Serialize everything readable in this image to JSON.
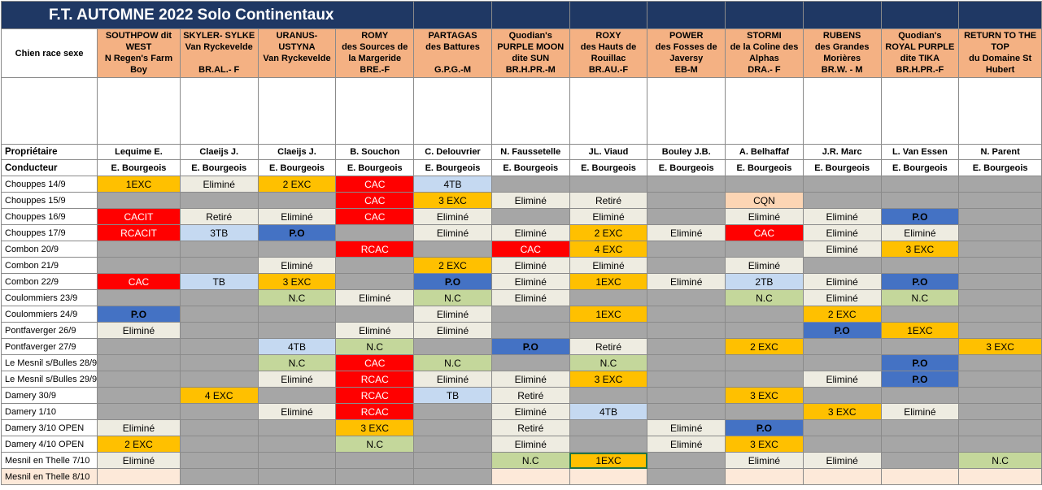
{
  "title": "F.T. AUTOMNE 2022 Solo Continentaux",
  "labels": {
    "chien": "Chien race sexe",
    "proprietaire": "Propriétaire",
    "conducteur": "Conducteur"
  },
  "dogs": [
    {
      "name_lines": [
        "SOUTHPOW dit",
        "WEST",
        "N Regen's Farm",
        "Boy"
      ],
      "owner": "Lequime E.",
      "handler": "E. Bourgeois",
      "photo_colors": {
        "dog": "#8c8b80",
        "bg": "grass"
      }
    },
    {
      "name_lines": [
        "SKYLER- SYLKE",
        "Van Ryckevelde",
        "",
        "BR.AL.- F"
      ],
      "owner": "Claeijs J.",
      "handler": "E. Bourgeois",
      "photo_colors": {
        "dog": "#3a3530",
        "bg": "grass"
      }
    },
    {
      "name_lines": [
        "URANUS-",
        "USTYNA",
        "Van Ryckevelde",
        ""
      ],
      "owner": "Claeijs J.",
      "handler": "E. Bourgeois",
      "photo_colors": {
        "dog": "#4a3a32",
        "bg": "grass"
      }
    },
    {
      "name_lines": [
        "ROMY",
        "des Sources de",
        "la Margeride",
        "BRE.-F"
      ],
      "owner": "B. Souchon",
      "handler": "E. Bourgeois",
      "photo_colors": {
        "dog": "#2a2320",
        "bg": "grass"
      }
    },
    {
      "name_lines": [
        "PARTAGAS",
        "des Battures",
        "",
        "G.P.G.-M"
      ],
      "owner": "C. Delouvrier",
      "handler": "E. Bourgeois",
      "photo_colors": {
        "dog": "#7a6e62",
        "bg": "grass"
      }
    },
    {
      "name_lines": [
        "Quodian's",
        "PURPLE MOON",
        "dite SUN",
        "BR.H.PR.-M"
      ],
      "owner": "N. Faussetelle",
      "handler": "E. Bourgeois",
      "photo_colors": {
        "dog": "#b06a38",
        "bg": "grass"
      }
    },
    {
      "name_lines": [
        "ROXY",
        "des Hauts de",
        "Rouillac",
        "BR.AU.-F"
      ],
      "owner": "JL. Viaud",
      "handler": "E. Bourgeois",
      "photo_colors": {
        "dog": "#d8d8d0",
        "bg": "grass"
      }
    },
    {
      "name_lines": [
        "POWER",
        "des Fosses de",
        "Javersy",
        "EB-M"
      ],
      "owner": "Bouley J.B.",
      "handler": "E. Bourgeois",
      "photo_colors": {
        "dog": "#3b4a68",
        "bg": "grass"
      }
    },
    {
      "name_lines": [
        "STORMI",
        "de la Coline des",
        "Alphas",
        "DRA.- F"
      ],
      "owner": "A. Belhaffaf",
      "handler": "E. Bourgeois",
      "photo_colors": {
        "dog": "#2c2a27",
        "bg": "grass"
      }
    },
    {
      "name_lines": [
        "RUBENS",
        "des Grandes",
        "Morières",
        "BR.W. - M"
      ],
      "owner": "J.R. Marc",
      "handler": "E. Bourgeois",
      "photo_colors": {
        "dog": "#9a948a",
        "bg": "grass"
      }
    },
    {
      "name_lines": [
        "Quodian's",
        "ROYAL PURPLE",
        "dite TIKA",
        "BR.H.PR.-F"
      ],
      "owner": "L. Van Essen",
      "handler": "E. Bourgeois",
      "photo_colors": {
        "dog": "#b0603a",
        "bg": "grass"
      }
    },
    {
      "name_lines": [
        "RETURN TO THE",
        "TOP",
        "du Domaine St",
        "Hubert"
      ],
      "owner": "N. Parent",
      "handler": "E. Bourgeois",
      "photo_colors": {
        "dog": "#c9a882",
        "bg": "grass"
      }
    }
  ],
  "legend_colors": {
    "O": "#ffc000",
    "R": "#ff0000",
    "B": "#4472c4",
    "L": "#c5d9f1",
    "G": "#c4d79b",
    "C": "#eeece1",
    "P": "#fcd5b4",
    "X": "#a6a6a6",
    "E": "#fde9d9",
    "W": "#ffffff"
  },
  "rows": [
    {
      "date": "Chouppes 14/9",
      "cells": [
        [
          "O",
          "1EXC"
        ],
        [
          "C",
          "Eliminé"
        ],
        [
          "O",
          "2 EXC"
        ],
        [
          "R",
          "CAC"
        ],
        [
          "L",
          "4TB"
        ],
        [
          "X",
          ""
        ],
        [
          "X",
          ""
        ],
        [
          "X",
          ""
        ],
        [
          "X",
          ""
        ],
        [
          "X",
          ""
        ],
        [
          "X",
          ""
        ],
        [
          "X",
          ""
        ]
      ]
    },
    {
      "date": "Chouppes 15/9",
      "cells": [
        [
          "X",
          ""
        ],
        [
          "X",
          ""
        ],
        [
          "X",
          ""
        ],
        [
          "R",
          "CAC"
        ],
        [
          "O",
          "3 EXC"
        ],
        [
          "C",
          "Eliminé"
        ],
        [
          "C",
          "Retiré"
        ],
        [
          "X",
          ""
        ],
        [
          "P",
          "CQN"
        ],
        [
          "X",
          ""
        ],
        [
          "X",
          ""
        ],
        [
          "X",
          ""
        ]
      ]
    },
    {
      "date": "Chouppes 16/9",
      "cells": [
        [
          "R",
          "CACIT"
        ],
        [
          "C",
          "Retiré"
        ],
        [
          "C",
          "Eliminé"
        ],
        [
          "R",
          "CAC"
        ],
        [
          "C",
          "Eliminé"
        ],
        [
          "X",
          ""
        ],
        [
          "C",
          "Eliminé"
        ],
        [
          "X",
          ""
        ],
        [
          "C",
          "Eliminé"
        ],
        [
          "C",
          "Eliminé"
        ],
        [
          "B",
          "P.O"
        ],
        [
          "X",
          ""
        ]
      ]
    },
    {
      "date": "Chouppes 17/9",
      "cells": [
        [
          "R",
          "RCACIT"
        ],
        [
          "L",
          "3TB"
        ],
        [
          "B",
          "P.O"
        ],
        [
          "X",
          ""
        ],
        [
          "C",
          "Eliminé"
        ],
        [
          "C",
          "Eliminé"
        ],
        [
          "O",
          "2 EXC"
        ],
        [
          "C",
          "Eliminé"
        ],
        [
          "R",
          "CAC"
        ],
        [
          "C",
          "Eliminé"
        ],
        [
          "C",
          "Eliminé"
        ],
        [
          "X",
          ""
        ]
      ]
    },
    {
      "date": "Combon 20/9",
      "cells": [
        [
          "X",
          ""
        ],
        [
          "X",
          ""
        ],
        [
          "X",
          ""
        ],
        [
          "R",
          "RCAC"
        ],
        [
          "X",
          ""
        ],
        [
          "R",
          "CAC"
        ],
        [
          "O",
          "4 EXC"
        ],
        [
          "X",
          ""
        ],
        [
          "X",
          ""
        ],
        [
          "C",
          "Eliminé"
        ],
        [
          "O",
          "3 EXC"
        ],
        [
          "X",
          ""
        ]
      ]
    },
    {
      "date": "Combon 21/9",
      "cells": [
        [
          "X",
          ""
        ],
        [
          "X",
          ""
        ],
        [
          "C",
          "Eliminé"
        ],
        [
          "X",
          ""
        ],
        [
          "O",
          "2 EXC"
        ],
        [
          "C",
          "Eliminé"
        ],
        [
          "C",
          "Eliminé"
        ],
        [
          "X",
          ""
        ],
        [
          "C",
          "Eliminé"
        ],
        [
          "X",
          ""
        ],
        [
          "X",
          ""
        ],
        [
          "X",
          ""
        ]
      ]
    },
    {
      "date": "Combon 22/9",
      "cells": [
        [
          "R",
          "CAC"
        ],
        [
          "L",
          "TB"
        ],
        [
          "O",
          "3 EXC"
        ],
        [
          "X",
          ""
        ],
        [
          "B",
          "P.O"
        ],
        [
          "C",
          "Eliminé"
        ],
        [
          "O",
          "1EXC"
        ],
        [
          "C",
          "Eliminé"
        ],
        [
          "L",
          "2TB"
        ],
        [
          "C",
          "Eliminé"
        ],
        [
          "B",
          "P.O"
        ],
        [
          "X",
          ""
        ]
      ]
    },
    {
      "date": "Coulommiers 23/9",
      "cells": [
        [
          "X",
          ""
        ],
        [
          "X",
          ""
        ],
        [
          "G",
          "N.C"
        ],
        [
          "C",
          "Eliminé"
        ],
        [
          "G",
          "N.C"
        ],
        [
          "C",
          "Eliminé"
        ],
        [
          "X",
          ""
        ],
        [
          "X",
          ""
        ],
        [
          "G",
          "N.C"
        ],
        [
          "C",
          "Eliminé"
        ],
        [
          "G",
          "N.C"
        ],
        [
          "X",
          ""
        ]
      ]
    },
    {
      "date": "Coulommiers 24/9",
      "cells": [
        [
          "B",
          "P.O"
        ],
        [
          "X",
          ""
        ],
        [
          "X",
          ""
        ],
        [
          "X",
          ""
        ],
        [
          "C",
          "Eliminé"
        ],
        [
          "X",
          ""
        ],
        [
          "O",
          "1EXC"
        ],
        [
          "X",
          ""
        ],
        [
          "X",
          ""
        ],
        [
          "O",
          "2 EXC"
        ],
        [
          "X",
          ""
        ],
        [
          "X",
          ""
        ]
      ]
    },
    {
      "date": "Pontfaverger 26/9",
      "cells": [
        [
          "C",
          "Eliminé"
        ],
        [
          "X",
          ""
        ],
        [
          "X",
          ""
        ],
        [
          "C",
          "Eliminé"
        ],
        [
          "C",
          "Eliminé"
        ],
        [
          "X",
          ""
        ],
        [
          "X",
          ""
        ],
        [
          "X",
          ""
        ],
        [
          "X",
          ""
        ],
        [
          "B",
          "P.O"
        ],
        [
          "O",
          "1EXC"
        ],
        [
          "X",
          ""
        ]
      ]
    },
    {
      "date": "Pontfaverger 27/9",
      "cells": [
        [
          "X",
          ""
        ],
        [
          "X",
          ""
        ],
        [
          "L",
          "4TB"
        ],
        [
          "G",
          "N.C"
        ],
        [
          "X",
          ""
        ],
        [
          "B",
          "P.O"
        ],
        [
          "C",
          "Retiré"
        ],
        [
          "X",
          ""
        ],
        [
          "O",
          "2 EXC"
        ],
        [
          "X",
          ""
        ],
        [
          "X",
          ""
        ],
        [
          "O",
          "3 EXC"
        ]
      ]
    },
    {
      "date": "Le Mesnil s/Bulles 28/9",
      "cells": [
        [
          "X",
          ""
        ],
        [
          "X",
          ""
        ],
        [
          "G",
          "N.C"
        ],
        [
          "R",
          "CAC"
        ],
        [
          "G",
          "N.C"
        ],
        [
          "X",
          ""
        ],
        [
          "G",
          "N.C"
        ],
        [
          "X",
          ""
        ],
        [
          "X",
          ""
        ],
        [
          "X",
          ""
        ],
        [
          "B",
          "P.O"
        ],
        [
          "X",
          ""
        ]
      ]
    },
    {
      "date": "Le Mesnil s/Bulles 29/9",
      "cells": [
        [
          "X",
          ""
        ],
        [
          "X",
          ""
        ],
        [
          "C",
          "Eliminé"
        ],
        [
          "R",
          "RCAC"
        ],
        [
          "C",
          "Eliminé"
        ],
        [
          "C",
          "Eliminé"
        ],
        [
          "O",
          "3 EXC"
        ],
        [
          "X",
          ""
        ],
        [
          "X",
          ""
        ],
        [
          "C",
          "Eliminé"
        ],
        [
          "B",
          "P.O"
        ],
        [
          "X",
          ""
        ]
      ]
    },
    {
      "date": "Damery 30/9",
      "cells": [
        [
          "X",
          ""
        ],
        [
          "O",
          "4 EXC"
        ],
        [
          "X",
          ""
        ],
        [
          "R",
          "RCAC"
        ],
        [
          "L",
          "TB"
        ],
        [
          "C",
          "Retiré"
        ],
        [
          "X",
          ""
        ],
        [
          "X",
          ""
        ],
        [
          "O",
          "3 EXC"
        ],
        [
          "X",
          ""
        ],
        [
          "X",
          ""
        ],
        [
          "X",
          ""
        ]
      ]
    },
    {
      "date": "Damery 1/10",
      "cells": [
        [
          "X",
          ""
        ],
        [
          "X",
          ""
        ],
        [
          "C",
          "Eliminé"
        ],
        [
          "R",
          "RCAC"
        ],
        [
          "X",
          ""
        ],
        [
          "C",
          "Eliminé"
        ],
        [
          "L",
          "4TB"
        ],
        [
          "X",
          ""
        ],
        [
          "X",
          ""
        ],
        [
          "O",
          "3 EXC"
        ],
        [
          "C",
          "Eliminé"
        ],
        [
          "X",
          ""
        ]
      ]
    },
    {
      "date": "Damery 3/10 OPEN",
      "cells": [
        [
          "C",
          "Eliminé"
        ],
        [
          "X",
          ""
        ],
        [
          "X",
          ""
        ],
        [
          "O",
          "3 EXC"
        ],
        [
          "X",
          ""
        ],
        [
          "C",
          "Retiré"
        ],
        [
          "X",
          ""
        ],
        [
          "C",
          "Eliminé"
        ],
        [
          "B",
          "P.O"
        ],
        [
          "X",
          ""
        ],
        [
          "X",
          ""
        ],
        [
          "X",
          ""
        ]
      ]
    },
    {
      "date": "Damery 4/10 OPEN",
      "cells": [
        [
          "O",
          "2 EXC"
        ],
        [
          "X",
          ""
        ],
        [
          "X",
          ""
        ],
        [
          "G",
          "N.C"
        ],
        [
          "X",
          ""
        ],
        [
          "C",
          "Eliminé"
        ],
        [
          "X",
          ""
        ],
        [
          "C",
          "Eliminé"
        ],
        [
          "O",
          "3 EXC"
        ],
        [
          "X",
          ""
        ],
        [
          "X",
          ""
        ],
        [
          "X",
          ""
        ]
      ]
    },
    {
      "date": "Mesnil en Thelle 7/10",
      "cells": [
        [
          "C",
          "Eliminé"
        ],
        [
          "X",
          ""
        ],
        [
          "X",
          ""
        ],
        [
          "X",
          ""
        ],
        [
          "X",
          ""
        ],
        [
          "G",
          "N.C"
        ],
        [
          "O",
          "1EXC"
        ],
        [
          "X",
          ""
        ],
        [
          "C",
          "Eliminé"
        ],
        [
          "C",
          "Eliminé"
        ],
        [
          "X",
          ""
        ],
        [
          "G",
          "N.C"
        ]
      ]
    },
    {
      "date": "Mesnil en Thelle 8/10",
      "cells": [
        [
          "E",
          ""
        ],
        [
          "X",
          ""
        ],
        [
          "X",
          ""
        ],
        [
          "X",
          ""
        ],
        [
          "X",
          ""
        ],
        [
          "E",
          ""
        ],
        [
          "E",
          ""
        ],
        [
          "X",
          ""
        ],
        [
          "E",
          ""
        ],
        [
          "E",
          ""
        ],
        [
          "E",
          ""
        ],
        [
          "E",
          ""
        ]
      ]
    }
  ]
}
